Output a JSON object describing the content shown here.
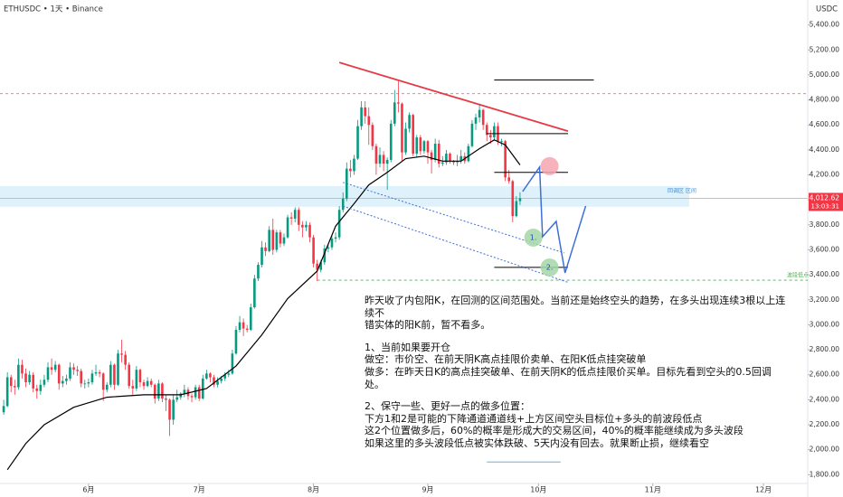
{
  "chart_data": {
    "type": "candlestick",
    "header": "ETHUSDC • 1天 • Binance",
    "currency": "USDC",
    "up_color": "#089981",
    "down_color": "#f23645",
    "candles": [
      [
        2300,
        2400,
        2280,
        2350
      ],
      [
        2350,
        2620,
        2340,
        2580
      ],
      [
        2580,
        2600,
        2460,
        2510
      ],
      [
        2510,
        2560,
        2440,
        2500
      ],
      [
        2500,
        2730,
        2480,
        2680
      ],
      [
        2680,
        2720,
        2570,
        2610
      ],
      [
        2610,
        2650,
        2500,
        2540
      ],
      [
        2540,
        2630,
        2520,
        2600
      ],
      [
        2600,
        2620,
        2460,
        2490
      ],
      [
        2490,
        2520,
        2410,
        2470
      ],
      [
        2470,
        2560,
        2440,
        2520
      ],
      [
        2520,
        2600,
        2500,
        2560
      ],
      [
        2560,
        2700,
        2540,
        2660
      ],
      [
        2660,
        2730,
        2600,
        2640
      ],
      [
        2640,
        2710,
        2620,
        2680
      ],
      [
        2680,
        2690,
        2480,
        2530
      ],
      [
        2530,
        2590,
        2500,
        2550
      ],
      [
        2550,
        2600,
        2520,
        2570
      ],
      [
        2570,
        2700,
        2550,
        2660
      ],
      [
        2660,
        2690,
        2600,
        2640
      ],
      [
        2640,
        2670,
        2590,
        2630
      ],
      [
        2630,
        2650,
        2500,
        2530
      ],
      [
        2530,
        2560,
        2490,
        2530
      ],
      [
        2530,
        2570,
        2500,
        2540
      ],
      [
        2540,
        2640,
        2520,
        2610
      ],
      [
        2610,
        2680,
        2590,
        2620
      ],
      [
        2620,
        2640,
        2580,
        2610
      ],
      [
        2610,
        2620,
        2390,
        2480
      ],
      [
        2480,
        2540,
        2460,
        2520
      ],
      [
        2520,
        2710,
        2500,
        2680
      ],
      [
        2680,
        2690,
        2480,
        2520
      ],
      [
        2520,
        2800,
        2510,
        2770
      ],
      [
        2770,
        2880,
        2700,
        2760
      ],
      [
        2760,
        2790,
        2640,
        2680
      ],
      [
        2680,
        2700,
        2490,
        2510
      ],
      [
        2510,
        2560,
        2440,
        2490
      ],
      [
        2490,
        2670,
        2470,
        2640
      ],
      [
        2640,
        2650,
        2500,
        2540
      ],
      [
        2540,
        2560,
        2480,
        2510
      ],
      [
        2510,
        2580,
        2500,
        2550
      ],
      [
        2550,
        2570,
        2500,
        2520
      ],
      [
        2520,
        2530,
        2370,
        2410
      ],
      [
        2410,
        2560,
        2390,
        2530
      ],
      [
        2530,
        2540,
        2380,
        2410
      ],
      [
        2410,
        2440,
        2310,
        2400
      ],
      [
        2400,
        2410,
        2110,
        2240
      ],
      [
        2240,
        2440,
        2200,
        2400
      ],
      [
        2400,
        2480,
        2380,
        2420
      ],
      [
        2420,
        2460,
        2400,
        2450
      ],
      [
        2450,
        2520,
        2420,
        2480
      ],
      [
        2480,
        2500,
        2400,
        2430
      ],
      [
        2430,
        2450,
        2380,
        2420
      ],
      [
        2420,
        2520,
        2400,
        2500
      ],
      [
        2500,
        2520,
        2390,
        2410
      ],
      [
        2410,
        2600,
        2400,
        2570
      ],
      [
        2570,
        2640,
        2560,
        2610
      ],
      [
        2610,
        2620,
        2540,
        2580
      ],
      [
        2580,
        2600,
        2500,
        2520
      ],
      [
        2520,
        2580,
        2500,
        2550
      ],
      [
        2550,
        2590,
        2530,
        2570
      ],
      [
        2570,
        2620,
        2550,
        2600
      ],
      [
        2600,
        2640,
        2580,
        2610
      ],
      [
        2610,
        2800,
        2600,
        2770
      ],
      [
        2770,
        2990,
        2760,
        2960
      ],
      [
        2960,
        3070,
        2940,
        3020
      ],
      [
        3020,
        3050,
        2910,
        2970
      ],
      [
        2970,
        3000,
        2940,
        2960
      ],
      [
        2960,
        3170,
        2950,
        3140
      ],
      [
        3140,
        3400,
        3130,
        3370
      ],
      [
        3370,
        3500,
        3350,
        3480
      ],
      [
        3480,
        3670,
        3460,
        3620
      ],
      [
        3620,
        3660,
        3550,
        3590
      ],
      [
        3590,
        3790,
        3580,
        3760
      ],
      [
        3760,
        3850,
        3560,
        3600
      ],
      [
        3600,
        3760,
        3580,
        3740
      ],
      [
        3740,
        3760,
        3620,
        3650
      ],
      [
        3650,
        3730,
        3630,
        3700
      ],
      [
        3700,
        3880,
        3690,
        3860
      ],
      [
        3860,
        3900,
        3800,
        3850
      ],
      [
        3850,
        3940,
        3820,
        3920
      ],
      [
        3920,
        3940,
        3750,
        3800
      ],
      [
        3800,
        3830,
        3700,
        3780
      ],
      [
        3780,
        3830,
        3750,
        3800
      ],
      [
        3800,
        3820,
        3660,
        3700
      ],
      [
        3700,
        3720,
        3460,
        3490
      ],
      [
        3490,
        3520,
        3350,
        3440
      ],
      [
        3440,
        3520,
        3420,
        3500
      ],
      [
        3500,
        3640,
        3480,
        3610
      ],
      [
        3610,
        3640,
        3580,
        3620
      ],
      [
        3620,
        3710,
        3600,
        3690
      ],
      [
        3690,
        3740,
        3660,
        3700
      ],
      [
        3700,
        3950,
        3680,
        3920
      ],
      [
        3920,
        4060,
        3900,
        4010
      ],
      [
        4010,
        4300,
        3990,
        4250
      ],
      [
        4250,
        4320,
        4180,
        4230
      ],
      [
        4230,
        4360,
        4200,
        4330
      ],
      [
        4330,
        4640,
        4320,
        4590
      ],
      [
        4590,
        4790,
        4560,
        4740
      ],
      [
        4740,
        4790,
        4610,
        4670
      ],
      [
        4670,
        4740,
        4440,
        4600
      ],
      [
        4600,
        4620,
        4400,
        4430
      ],
      [
        4430,
        4450,
        4200,
        4290
      ],
      [
        4290,
        4420,
        4260,
        4360
      ],
      [
        4360,
        4390,
        4230,
        4290
      ],
      [
        4290,
        4340,
        4080,
        4320
      ],
      [
        4320,
        4640,
        4300,
        4610
      ],
      [
        4610,
        4880,
        4590,
        4780
      ],
      [
        4780,
        4950,
        4700,
        4770
      ],
      [
        4770,
        4780,
        4310,
        4380
      ],
      [
        4380,
        4620,
        4360,
        4570
      ],
      [
        4570,
        4700,
        4540,
        4680
      ],
      [
        4680,
        4690,
        4350,
        4370
      ],
      [
        4370,
        4520,
        4340,
        4500
      ],
      [
        4500,
        4520,
        4360,
        4390
      ],
      [
        4390,
        4480,
        4370,
        4470
      ],
      [
        4470,
        4480,
        4290,
        4380
      ],
      [
        4380,
        4400,
        4210,
        4320
      ],
      [
        4320,
        4490,
        4300,
        4450
      ],
      [
        4450,
        4480,
        4260,
        4290
      ],
      [
        4290,
        4350,
        4270,
        4300
      ],
      [
        4300,
        4400,
        4280,
        4370
      ],
      [
        4370,
        4380,
        4290,
        4310
      ],
      [
        4310,
        4320,
        4280,
        4300
      ],
      [
        4300,
        4360,
        4270,
        4310
      ],
      [
        4310,
        4400,
        4290,
        4350
      ],
      [
        4350,
        4380,
        4290,
        4310
      ],
      [
        4310,
        4450,
        4300,
        4430
      ],
      [
        4430,
        4640,
        4420,
        4610
      ],
      [
        4610,
        4690,
        4560,
        4660
      ],
      [
        4660,
        4770,
        4620,
        4720
      ],
      [
        4720,
        4730,
        4560,
        4600
      ],
      [
        4600,
        4620,
        4470,
        4520
      ],
      [
        4520,
        4560,
        4450,
        4500
      ],
      [
        4500,
        4620,
        4480,
        4590
      ],
      [
        4590,
        4620,
        4440,
        4470
      ],
      [
        4470,
        4490,
        4430,
        4470
      ],
      [
        4470,
        4480,
        4150,
        4180
      ],
      [
        4180,
        4240,
        4130,
        4150
      ],
      [
        4150,
        4160,
        3820,
        3870
      ],
      [
        3870,
        4030,
        3860,
        3990
      ],
      [
        3990,
        4060,
        3960,
        4012.62
      ]
    ],
    "ma": {
      "color": "#000000",
      "x": [
        1,
        6,
        11,
        19,
        28,
        38,
        48,
        55,
        63,
        70,
        77,
        85,
        90,
        95,
        99,
        104,
        109,
        114,
        119,
        124,
        129,
        133,
        136,
        140
      ],
      "values": [
        1840,
        2050,
        2200,
        2340,
        2420,
        2440,
        2440,
        2490,
        2670,
        2920,
        3210,
        3430,
        3790,
        3970,
        4120,
        4220,
        4330,
        4350,
        4310,
        4310,
        4410,
        4480,
        4440,
        4280
      ]
    },
    "xlim": [
      -1,
      218
    ],
    "xticks": [
      {
        "value": 23,
        "label": "6月"
      },
      {
        "value": 53,
        "label": "7月"
      },
      {
        "value": 84,
        "label": "8月"
      },
      {
        "value": 115,
        "label": "9月"
      },
      {
        "value": 145,
        "label": "10月"
      },
      {
        "value": 176,
        "label": "11月"
      },
      {
        "value": 206,
        "label": "12月"
      }
    ],
    "ylim": [
      1730,
      5600
    ],
    "yticks": [
      {
        "value": 5400,
        "label": "5,400.00"
      },
      {
        "value": 5200,
        "label": "5,200.00"
      },
      {
        "value": 5000,
        "label": "5,000.00"
      },
      {
        "value": 4800,
        "label": "4,800.00"
      },
      {
        "value": 4600,
        "label": "4,600.00"
      },
      {
        "value": 4400,
        "label": "4,400.00"
      },
      {
        "value": 4200,
        "label": "4,200.00"
      },
      {
        "value": 4000,
        "label": "4,000.00"
      },
      {
        "value": 3800,
        "label": "3,800.00"
      },
      {
        "value": 3600,
        "label": "3,600.00"
      },
      {
        "value": 3400,
        "label": "3,400.00"
      },
      {
        "value": 3200,
        "label": "3,200.00"
      },
      {
        "value": 3000,
        "label": "3,000.00"
      },
      {
        "value": 2800,
        "label": "2,800.00"
      },
      {
        "value": 2600,
        "label": "2,600.00"
      },
      {
        "value": 2400,
        "label": "2,400.00"
      },
      {
        "value": 2200,
        "label": "2,200.00"
      },
      {
        "value": 2000,
        "label": "2,000.00"
      },
      {
        "value": 1800,
        "label": "1,800.00"
      }
    ],
    "last_price": {
      "value": 4012.62,
      "label": "4,012.62"
    },
    "countdown": "13:03:31",
    "drawings": {
      "trendline": {
        "color": "#e53945",
        "points": [
          [
            91,
            5100
          ],
          [
            153,
            4550
          ]
        ]
      },
      "resistance": {
        "price": 4850,
        "color": "#e57373"
      },
      "zone": {
        "low": 3945,
        "high": 4110,
        "color": "#dff2fb",
        "label": "回调区 区间"
      },
      "levels": [
        {
          "x": [
            133,
            160
          ],
          "price": 4960
        },
        {
          "x": [
            131,
            153
          ],
          "price": 4530
        },
        {
          "x": [
            133,
            153
          ],
          "price": 4220
        },
        {
          "x": [
            133,
            153
          ],
          "price": 3460
        }
      ],
      "channel": {
        "color": "#3d6fd8",
        "lines": [
          [
            [
              92,
              4140
            ],
            [
              152,
              3575
            ]
          ],
          [
            [
              92,
              3950
            ],
            [
              153,
              3340
            ]
          ]
        ]
      },
      "path": {
        "color": "#3d6fd8",
        "x": [
          140.7,
          145.3,
          146.1,
          149.8,
          152.2,
          157.8
        ],
        "values": [
          4067,
          4263,
          3705,
          3828,
          3415,
          3951
        ]
      },
      "swing_low": {
        "price": 3357,
        "x_start": 85,
        "label": "波段低点",
        "color": "#4caf50"
      },
      "circles": [
        {
          "x": 148,
          "price": 4270,
          "color": "#f4a6b0"
        },
        {
          "x": 143.6,
          "price": 3698,
          "color": "#a5d6a7",
          "label": "1."
        },
        {
          "x": 148,
          "price": 3459,
          "color": "#a5d6a7",
          "label": "2."
        }
      ],
      "target": {
        "x": [
          131,
          151
        ],
        "price": 1902,
        "color": "#6ab0de"
      }
    },
    "notes": [
      [
        "昨天收了内包阳K，在回测的区间范围处。当前还是始终空头的趋势，在多头出现连续3根以上连续不",
        "错实体的阳K前，暂不看多。"
      ],
      [
        "1、当前如果要开仓",
        "做空：市价空、在前天阴K高点挂限价卖单、在阳K低点挂突破单",
        "做多：在昨天日K的高点挂突破单、在前天阴K的低点挂限价买单。目标先看到空头的0.5回调处。"
      ],
      [
        "2、保守一些、更好一点的做多位置：",
        "下方1和2是可能的下降通道通道线+上方区间空头目标位+多头的前波段低点",
        "这2个位置做多后，60%的概率是形成大的交易区间，40%的概率能继续成为多头波段",
        "如果这里的多头波段低点被实体跌破、5天内没有回去。就果断止损，继续看空"
      ]
    ]
  }
}
